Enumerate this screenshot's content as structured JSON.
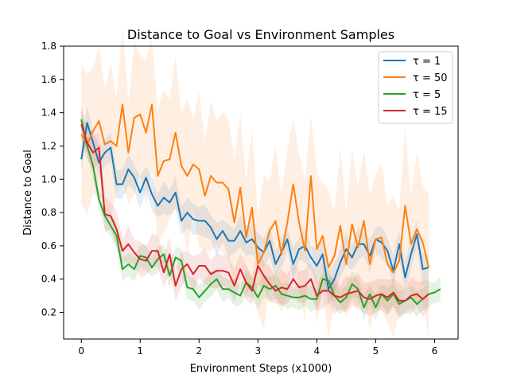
{
  "chart_data": {
    "type": "line",
    "title": "Distance to Goal vs Environment Samples",
    "xlabel": "Environment Steps (x1000)",
    "ylabel": "Distance to Goal",
    "xlim": [
      -0.3,
      6.4
    ],
    "ylim": [
      0.04,
      1.8
    ],
    "xticks": [
      0,
      1,
      2,
      3,
      4,
      5,
      6
    ],
    "yticks": [
      0.2,
      0.4,
      0.6,
      0.8,
      1.0,
      1.2,
      1.4,
      1.6,
      1.8
    ],
    "ytick_labels": [
      "0.2",
      "0.4",
      "0.6",
      "0.8",
      "1.0",
      "1.2",
      "1.4",
      "1.6",
      "1.8"
    ],
    "grid": false,
    "legend_position": "top-right",
    "shaded_band": "variance band around each series",
    "series": [
      {
        "name": "τ = 1",
        "color": "#1f77b4",
        "x": [
          0,
          0.1,
          0.2,
          0.3,
          0.4,
          0.5,
          0.6,
          0.7,
          0.8,
          0.9,
          1.0,
          1.1,
          1.2,
          1.3,
          1.4,
          1.5,
          1.6,
          1.7,
          1.8,
          1.9,
          2.0,
          2.1,
          2.2,
          2.3,
          2.4,
          2.5,
          2.6,
          2.7,
          2.8,
          2.9,
          3.0,
          3.1,
          3.2,
          3.3,
          3.4,
          3.5,
          3.6,
          3.7,
          3.8,
          3.9,
          4.0,
          4.1,
          4.2,
          4.3,
          4.4,
          4.5,
          4.6,
          4.7,
          4.8,
          4.9,
          5.0,
          5.1,
          5.2,
          5.3,
          5.4,
          5.5,
          5.6,
          5.7,
          5.8,
          5.9
        ],
        "values": [
          1.12,
          1.34,
          1.22,
          1.1,
          1.16,
          1.19,
          0.97,
          0.97,
          1.06,
          1.01,
          0.92,
          1.01,
          0.91,
          0.84,
          0.89,
          0.86,
          0.92,
          0.75,
          0.8,
          0.76,
          0.75,
          0.75,
          0.71,
          0.64,
          0.69,
          0.63,
          0.63,
          0.69,
          0.62,
          0.64,
          0.59,
          0.56,
          0.63,
          0.49,
          0.56,
          0.64,
          0.49,
          0.58,
          0.6,
          0.53,
          0.48,
          0.55,
          0.34,
          0.4,
          0.5,
          0.58,
          0.53,
          0.61,
          0.61,
          0.54,
          0.64,
          0.62,
          0.57,
          0.45,
          0.61,
          0.41,
          0.55,
          0.67,
          0.46,
          0.47
        ]
      },
      {
        "name": "τ = 50",
        "color": "#ff7f0e",
        "x": [
          0,
          0.1,
          0.2,
          0.3,
          0.4,
          0.5,
          0.6,
          0.7,
          0.8,
          0.9,
          1.0,
          1.1,
          1.2,
          1.3,
          1.4,
          1.5,
          1.6,
          1.7,
          1.8,
          1.9,
          2.0,
          2.1,
          2.2,
          2.3,
          2.4,
          2.5,
          2.6,
          2.7,
          2.8,
          2.9,
          3.0,
          3.1,
          3.2,
          3.3,
          3.4,
          3.5,
          3.6,
          3.7,
          3.8,
          3.9,
          4.0,
          4.1,
          4.2,
          4.3,
          4.4,
          4.5,
          4.6,
          4.7,
          4.8,
          4.9,
          5.0,
          5.1,
          5.2,
          5.3,
          5.4,
          5.5,
          5.6,
          5.7,
          5.8,
          5.9
        ],
        "values": [
          1.27,
          1.21,
          1.29,
          1.35,
          1.21,
          1.23,
          1.2,
          1.45,
          1.16,
          1.37,
          1.39,
          1.28,
          1.45,
          1.02,
          1.11,
          1.12,
          1.28,
          1.08,
          1.02,
          1.09,
          1.06,
          0.9,
          1.02,
          0.98,
          0.98,
          0.94,
          0.74,
          0.95,
          0.65,
          0.83,
          0.49,
          0.56,
          0.69,
          0.75,
          0.55,
          0.74,
          0.97,
          0.74,
          0.57,
          1.02,
          0.58,
          0.66,
          0.47,
          0.54,
          0.72,
          0.49,
          0.73,
          0.59,
          0.75,
          0.49,
          0.64,
          0.65,
          0.49,
          0.44,
          0.51,
          0.84,
          0.61,
          0.7,
          0.62,
          0.47
        ]
      },
      {
        "name": "τ = 5",
        "color": "#2ca02c",
        "x": [
          0,
          0.1,
          0.2,
          0.3,
          0.4,
          0.5,
          0.6,
          0.7,
          0.8,
          0.9,
          1.0,
          1.1,
          1.2,
          1.3,
          1.4,
          1.5,
          1.6,
          1.7,
          1.8,
          1.9,
          2.0,
          2.1,
          2.2,
          2.3,
          2.4,
          2.5,
          2.6,
          2.7,
          2.8,
          2.9,
          3.0,
          3.1,
          3.2,
          3.3,
          3.4,
          3.5,
          3.6,
          3.7,
          3.8,
          3.9,
          4.0,
          4.1,
          4.2,
          4.3,
          4.4,
          4.5,
          4.6,
          4.7,
          4.8,
          4.9,
          5.0,
          5.1,
          5.2,
          5.3,
          5.4,
          5.5,
          5.6,
          5.7,
          5.8,
          5.9,
          6.0,
          6.1
        ],
        "values": [
          1.36,
          1.2,
          1.08,
          0.88,
          0.78,
          0.72,
          0.66,
          0.46,
          0.49,
          0.46,
          0.54,
          0.53,
          0.47,
          0.52,
          0.55,
          0.42,
          0.53,
          0.51,
          0.35,
          0.34,
          0.29,
          0.33,
          0.37,
          0.4,
          0.34,
          0.34,
          0.32,
          0.3,
          0.38,
          0.35,
          0.29,
          0.36,
          0.34,
          0.36,
          0.31,
          0.3,
          0.29,
          0.29,
          0.3,
          0.28,
          0.28,
          0.4,
          0.39,
          0.3,
          0.26,
          0.29,
          0.37,
          0.34,
          0.23,
          0.31,
          0.23,
          0.31,
          0.27,
          0.31,
          0.25,
          0.27,
          0.29,
          0.25,
          0.28,
          0.31,
          0.32,
          0.34
        ]
      },
      {
        "name": "τ = 15",
        "color": "#d62728",
        "x": [
          0,
          0.1,
          0.2,
          0.3,
          0.4,
          0.5,
          0.6,
          0.7,
          0.8,
          0.9,
          1.0,
          1.1,
          1.2,
          1.3,
          1.4,
          1.5,
          1.6,
          1.7,
          1.8,
          1.9,
          2.0,
          2.1,
          2.2,
          2.3,
          2.4,
          2.5,
          2.6,
          2.7,
          2.8,
          2.9,
          3.0,
          3.1,
          3.2,
          3.3,
          3.4,
          3.5,
          3.6,
          3.7,
          3.8,
          3.9,
          4.0,
          4.1,
          4.2,
          4.3,
          4.4,
          4.5,
          4.6,
          4.7,
          4.8,
          4.9,
          5.0,
          5.1,
          5.2,
          5.3,
          5.4,
          5.5,
          5.6,
          5.7,
          5.8,
          5.9
        ],
        "values": [
          1.33,
          1.22,
          1.16,
          1.19,
          0.79,
          0.78,
          0.7,
          0.57,
          0.61,
          0.56,
          0.52,
          0.51,
          0.57,
          0.57,
          0.44,
          0.55,
          0.36,
          0.46,
          0.49,
          0.43,
          0.48,
          0.48,
          0.43,
          0.45,
          0.45,
          0.44,
          0.36,
          0.46,
          0.38,
          0.33,
          0.48,
          0.42,
          0.37,
          0.33,
          0.35,
          0.34,
          0.4,
          0.35,
          0.36,
          0.4,
          0.3,
          0.33,
          0.33,
          0.3,
          0.29,
          0.31,
          0.32,
          0.33,
          0.29,
          0.28,
          0.3,
          0.31,
          0.29,
          0.32,
          0.27,
          0.27,
          0.3,
          0.31,
          0.28,
          0.31
        ]
      }
    ]
  }
}
